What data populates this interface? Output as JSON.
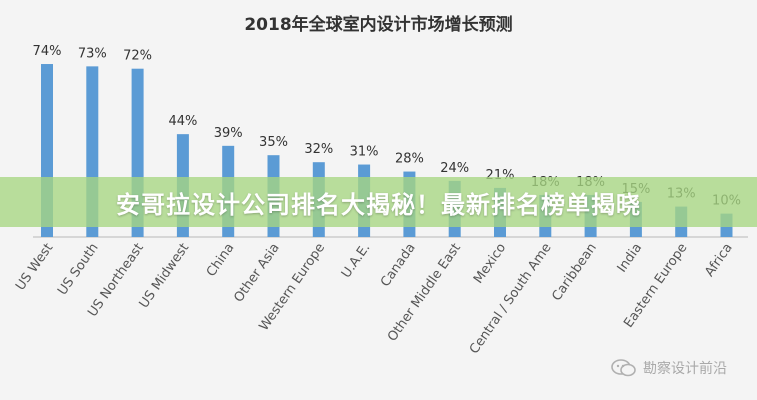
{
  "chart_data": {
    "type": "bar",
    "title": "2018年全球室内设计市场增长预测",
    "categories": [
      "US West",
      "US South",
      "US Northeast",
      "US Midwest",
      "China",
      "Other Asia",
      "Western Europe",
      "U.A.E.",
      "Canada",
      "Other Middle East",
      "Mexico",
      "Central / South Ame",
      "Caribbean",
      "India",
      "Eastern Europe",
      "Africa"
    ],
    "values": [
      74,
      73,
      72,
      44,
      39,
      35,
      32,
      31,
      28,
      24,
      21,
      18,
      18,
      15,
      13,
      10
    ],
    "value_labels": [
      "74%",
      "73%",
      "72%",
      "44%",
      "39%",
      "35%",
      "32%",
      "31%",
      "28%",
      "24%",
      "21%",
      "18%",
      "18%",
      "15%",
      "13%",
      "10%"
    ],
    "unit": "%",
    "ylim": [
      0,
      80
    ],
    "xlabel": "",
    "ylabel": "",
    "grid": false,
    "bar_color": "#5b9bd5",
    "axis_color": "#b8b8b8"
  },
  "banner": {
    "text": "安哥拉设计公司排名大揭秘！最新排名榜单揭晓",
    "color": "#a7d682"
  },
  "watermark": {
    "text": "勘察设计前沿",
    "icon": "wechat-icon"
  }
}
